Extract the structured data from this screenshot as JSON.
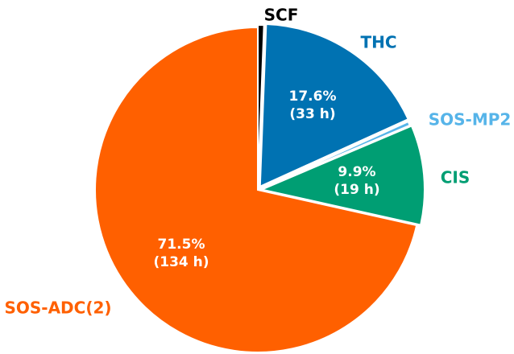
{
  "chart_data": {
    "type": "pie",
    "title": "",
    "start_angle_deg": 90,
    "direction": "clockwise",
    "slices": [
      {
        "label": "SCF",
        "percent": 0.6,
        "hours": null,
        "color": "#000000",
        "label_color": "#000000",
        "pct_text": "",
        "hours_text": ""
      },
      {
        "label": "THC",
        "percent": 17.6,
        "hours": 33,
        "color": "#0072b2",
        "label_color": "#0072b2",
        "pct_text": "17.6%",
        "hours_text": "(33 h)"
      },
      {
        "label": "SOS-MP2",
        "percent": 0.4,
        "hours": null,
        "color": "#56b4e9",
        "label_color": "#56b4e9",
        "pct_text": "",
        "hours_text": ""
      },
      {
        "label": "CIS",
        "percent": 9.9,
        "hours": 19,
        "color": "#009e73",
        "label_color": "#009e73",
        "pct_text": "9.9%",
        "hours_text": "(19 h)"
      },
      {
        "label": "SOS-ADC(2)",
        "percent": 71.5,
        "hours": 134,
        "color": "#ff6000",
        "label_color": "#ff6000",
        "pct_text": "71.5%",
        "hours_text": "(134 h)"
      }
    ]
  }
}
